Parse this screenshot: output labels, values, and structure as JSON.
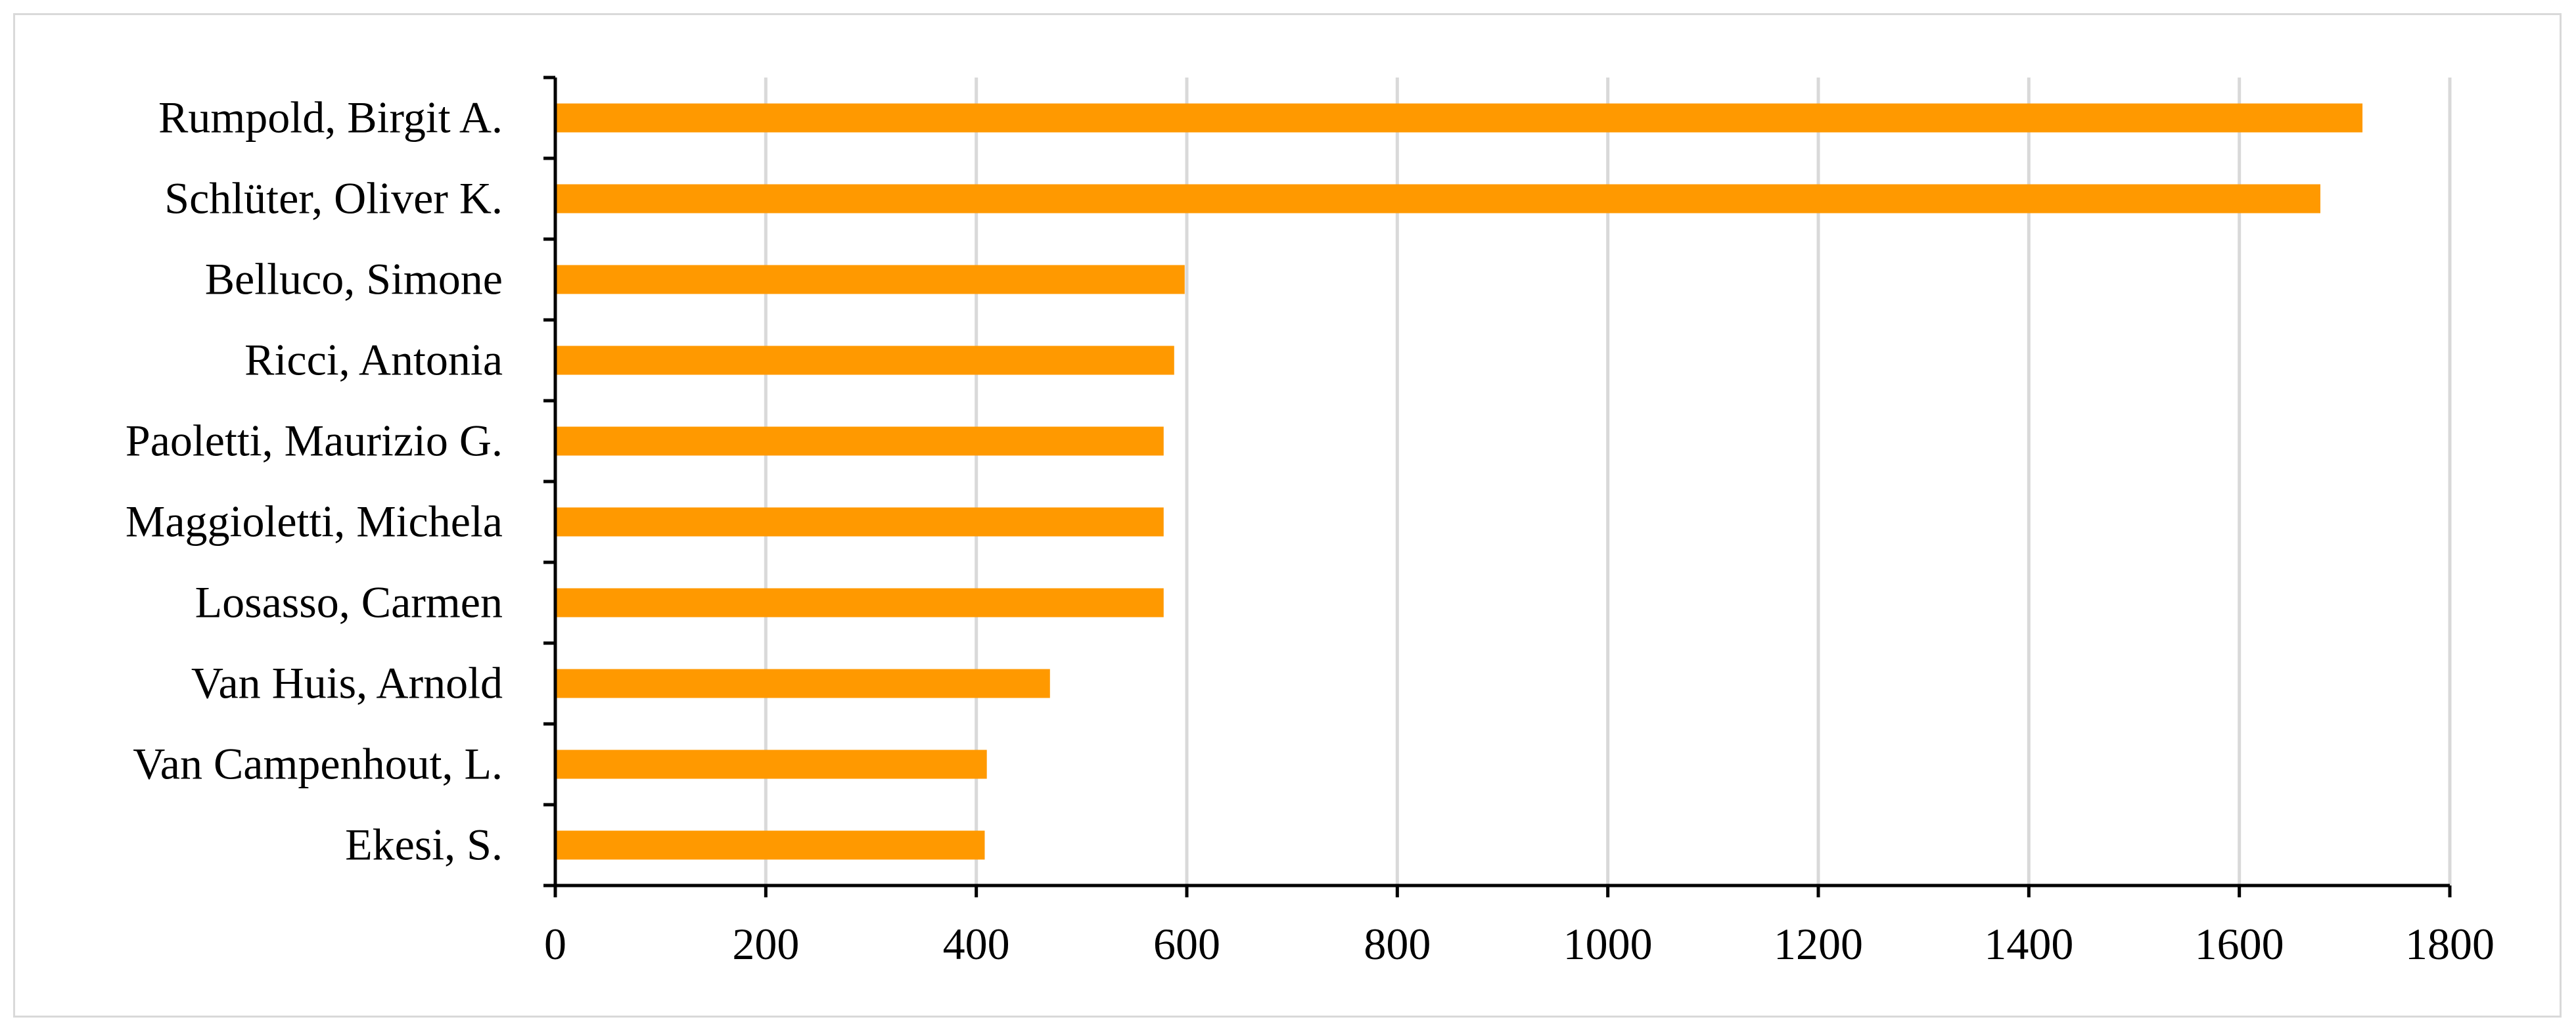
{
  "chart_data": {
    "type": "bar",
    "orientation": "horizontal",
    "categories": [
      "Rumpold, Birgit A.",
      "Schlüter, Oliver K.",
      "Belluco, Simone",
      "Ricci, Antonia",
      "Paoletti, Maurizio G.",
      "Maggioletti, Michela",
      "Losasso, Carmen",
      "Van Huis, Arnold",
      "Van Campenhout, L.",
      "Ekesi, S."
    ],
    "values": [
      1717,
      1677,
      598,
      588,
      578,
      578,
      578,
      470,
      410,
      408
    ],
    "xlim": [
      0,
      1800
    ],
    "xticks": [
      "0",
      "200",
      "400",
      "600",
      "800",
      "1000",
      "1200",
      "1400",
      "1600",
      "1800"
    ],
    "grid": "vertical",
    "colors": {
      "bar": "#FF9900",
      "grid": "#D9D9D9",
      "axis": "#000000"
    }
  }
}
